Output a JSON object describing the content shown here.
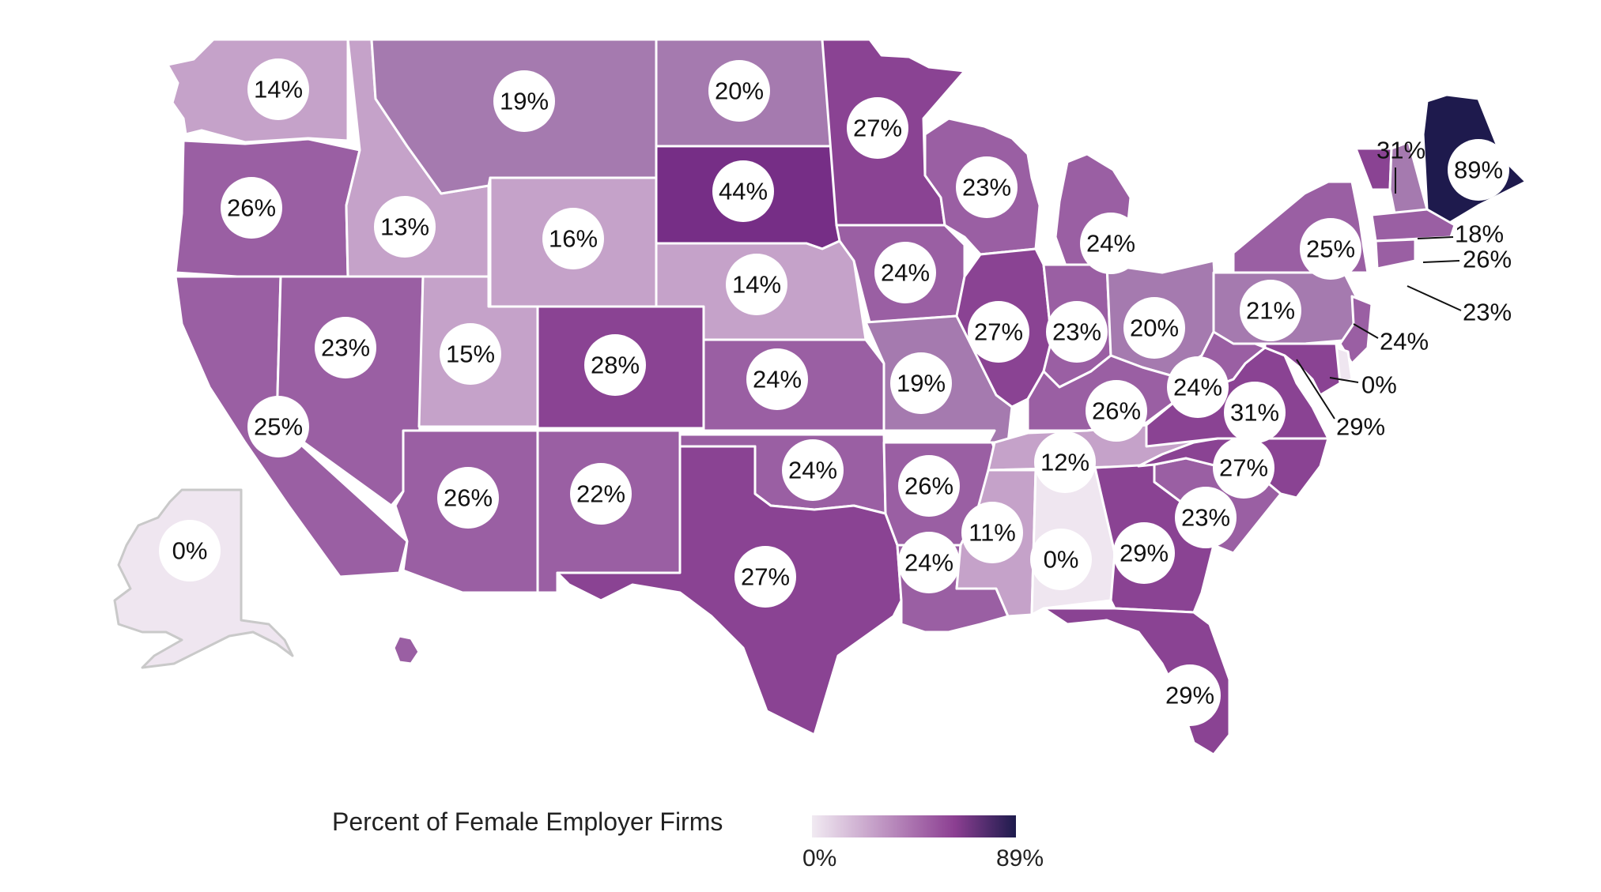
{
  "map": {
    "legend": {
      "title": "Percent of Female Employer Firms",
      "min_label": "0%",
      "max_label": "89%",
      "color_min": "#f1eaf2",
      "color_mid": "#8c3f92",
      "color_max": "#1d1b4c"
    },
    "color_scale": [
      "#efe6f0",
      "#c5a2c9",
      "#a57aaf",
      "#9a5fa3",
      "#8a4393",
      "#762e86",
      "#1e1a4d"
    ],
    "states": [
      {
        "code": "WA",
        "label": "14%",
        "value": 14
      },
      {
        "code": "OR",
        "label": "26%",
        "value": 26
      },
      {
        "code": "CA",
        "label": "25%",
        "value": 25
      },
      {
        "code": "NV",
        "label": "23%",
        "value": 23
      },
      {
        "code": "ID",
        "label": "13%",
        "value": 13
      },
      {
        "code": "MT",
        "label": "19%",
        "value": 19
      },
      {
        "code": "WY",
        "label": "16%",
        "value": 16
      },
      {
        "code": "UT",
        "label": "15%",
        "value": 15
      },
      {
        "code": "AZ",
        "label": "26%",
        "value": 26
      },
      {
        "code": "CO",
        "label": "28%",
        "value": 28
      },
      {
        "code": "NM",
        "label": "22%",
        "value": 22
      },
      {
        "code": "ND",
        "label": "20%",
        "value": 20
      },
      {
        "code": "SD",
        "label": "44%",
        "value": 44
      },
      {
        "code": "NE",
        "label": "14%",
        "value": 14
      },
      {
        "code": "KS",
        "label": "24%",
        "value": 24
      },
      {
        "code": "OK",
        "label": "24%",
        "value": 24
      },
      {
        "code": "TX",
        "label": "27%",
        "value": 27
      },
      {
        "code": "MN",
        "label": "27%",
        "value": 27
      },
      {
        "code": "IA",
        "label": "24%",
        "value": 24
      },
      {
        "code": "MO",
        "label": "19%",
        "value": 19
      },
      {
        "code": "AR",
        "label": "26%",
        "value": 26
      },
      {
        "code": "LA",
        "label": "24%",
        "value": 24
      },
      {
        "code": "WI",
        "label": "23%",
        "value": 23
      },
      {
        "code": "IL",
        "label": "27%",
        "value": 27
      },
      {
        "code": "MI",
        "label": "24%",
        "value": 24
      },
      {
        "code": "IN",
        "label": "23%",
        "value": 23
      },
      {
        "code": "OH",
        "label": "20%",
        "value": 20
      },
      {
        "code": "KY",
        "label": "26%",
        "value": 26
      },
      {
        "code": "TN",
        "label": "12%",
        "value": 12
      },
      {
        "code": "MS",
        "label": "11%",
        "value": 11
      },
      {
        "code": "AL",
        "label": "0%",
        "value": 0
      },
      {
        "code": "GA",
        "label": "29%",
        "value": 29
      },
      {
        "code": "FL",
        "label": "29%",
        "value": 29
      },
      {
        "code": "SC",
        "label": "23%",
        "value": 23
      },
      {
        "code": "NC",
        "label": "27%",
        "value": 27
      },
      {
        "code": "VA",
        "label": "31%",
        "value": 31
      },
      {
        "code": "WV",
        "label": "24%",
        "value": 24
      },
      {
        "code": "PA",
        "label": "21%",
        "value": 21
      },
      {
        "code": "NY",
        "label": "25%",
        "value": 25
      },
      {
        "code": "ME",
        "label": "89%",
        "value": 89
      },
      {
        "code": "AK",
        "label": "0%",
        "value": 0
      },
      {
        "code": "HI",
        "label": "",
        "value": 22
      }
    ],
    "callouts": [
      {
        "code": "VT",
        "label": "31%",
        "value": 31
      },
      {
        "code": "NH",
        "label": "18%",
        "value": 18
      },
      {
        "code": "MA",
        "label": "26%",
        "value": 26
      },
      {
        "code": "CT",
        "label": "23%",
        "value": 23
      },
      {
        "code": "NJ",
        "label": "24%",
        "value": 24
      },
      {
        "code": "DE",
        "label": "0%",
        "value": 0
      },
      {
        "code": "MD",
        "label": "29%",
        "value": 29
      }
    ]
  }
}
